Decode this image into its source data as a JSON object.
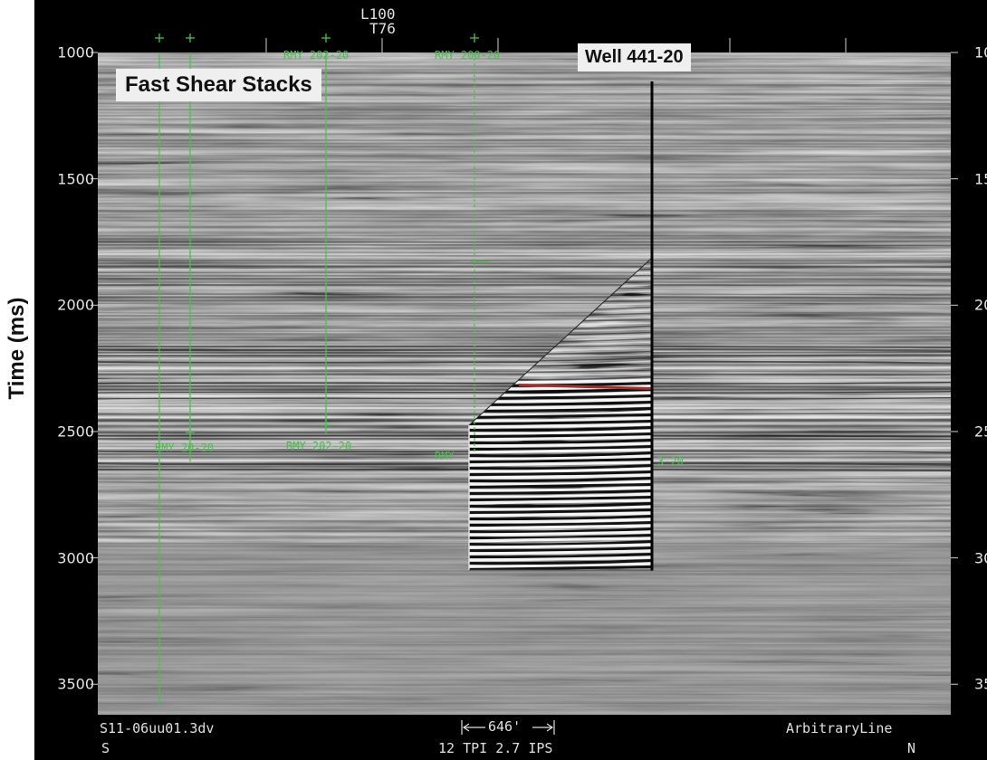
{
  "y_axis": {
    "label": "Time (ms)",
    "ticks_left": [
      "1000",
      "1500",
      "2000",
      "2500",
      "3000",
      "3500"
    ],
    "ticks_right": [
      "1000",
      "1500",
      "2000",
      "2500",
      "3000",
      "3500"
    ],
    "tick_values": [
      1000,
      1500,
      2000,
      2500,
      3000,
      3500
    ],
    "range": [
      1000,
      3600
    ]
  },
  "header": {
    "line": "L100",
    "trace": "T76"
  },
  "callouts": {
    "stacks": "Fast Shear Stacks",
    "well": "Well 441-20"
  },
  "footer": {
    "left_id": "S11-06uu01.3dv",
    "left_dir": "S",
    "scale_label": "646'",
    "scale_text": "12 TPI 2.7 IPS",
    "right_name": "ArbitraryLine",
    "right_dir": "N"
  },
  "well_labels": {
    "well_a_bottom": "RMY 20-20",
    "well_b_top": "RMY 202-20",
    "well_b_bottom": "RMY 202-20",
    "well_c_top": "RMY 200-20",
    "well_c_bottom": "RMY",
    "well_main_bottom": "3-20"
  },
  "colors": {
    "well_line": "#47c24a",
    "marker_red": "#a03030",
    "background": "#000000",
    "seismic_gray": "#8a8a8a"
  },
  "well_markers": {
    "red_horizon_ms": 2330,
    "main_well_top_ms": 1825,
    "main_well_bottom_ms": 3050,
    "insert_top_ms": 2460
  }
}
